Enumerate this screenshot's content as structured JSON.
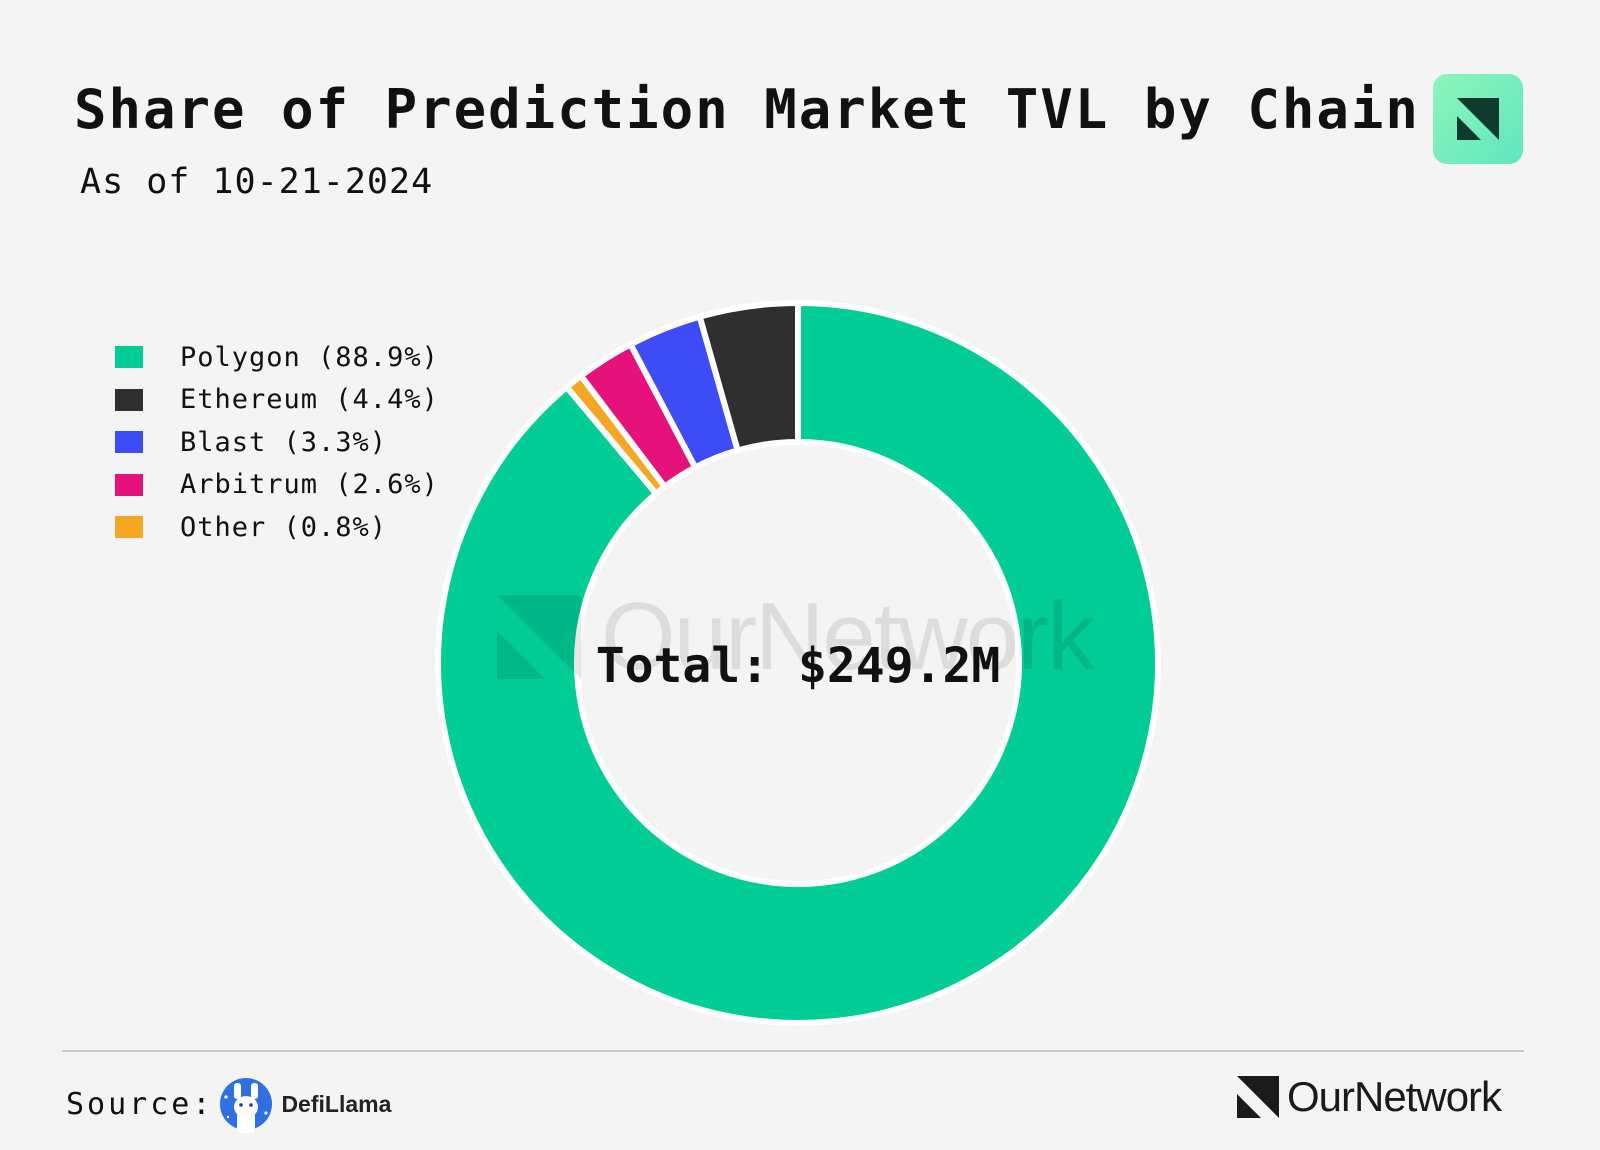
{
  "title": "Share of Prediction Market TVL by Chain",
  "subtitle": "As of 10-21-2024",
  "center_label": "Total: $249.2M",
  "source": {
    "label": "Source:",
    "name": "DefiLlama"
  },
  "brand": {
    "name": "OurNetwork",
    "watermark": "OurNetwork"
  },
  "colors": {
    "background": "#f4f4f4",
    "badge": "#7ef0c0"
  },
  "chart_data": {
    "type": "pie",
    "style": "donut",
    "start": "12 o'clock, clockwise",
    "legend_placement": "top-left",
    "total": 249.2,
    "total_unit": "$M",
    "series": [
      {
        "name": "Polygon",
        "value": 88.9,
        "label": "Polygon (88.9%)",
        "color": "#00cc96"
      },
      {
        "name": "Other",
        "value": 0.8,
        "label": "Other (0.8%)",
        "color": "#f5a623"
      },
      {
        "name": "Arbitrum",
        "value": 2.6,
        "label": "Arbitrum (2.6%)",
        "color": "#e5127c"
      },
      {
        "name": "Blast",
        "value": 3.3,
        "label": "Blast (3.3%)",
        "color": "#3e4cf7"
      },
      {
        "name": "Ethereum",
        "value": 4.4,
        "label": "Ethereum (4.4%)",
        "color": "#2f2f2f"
      }
    ],
    "legend_order": [
      "Polygon",
      "Ethereum",
      "Blast",
      "Arbitrum",
      "Other"
    ]
  }
}
